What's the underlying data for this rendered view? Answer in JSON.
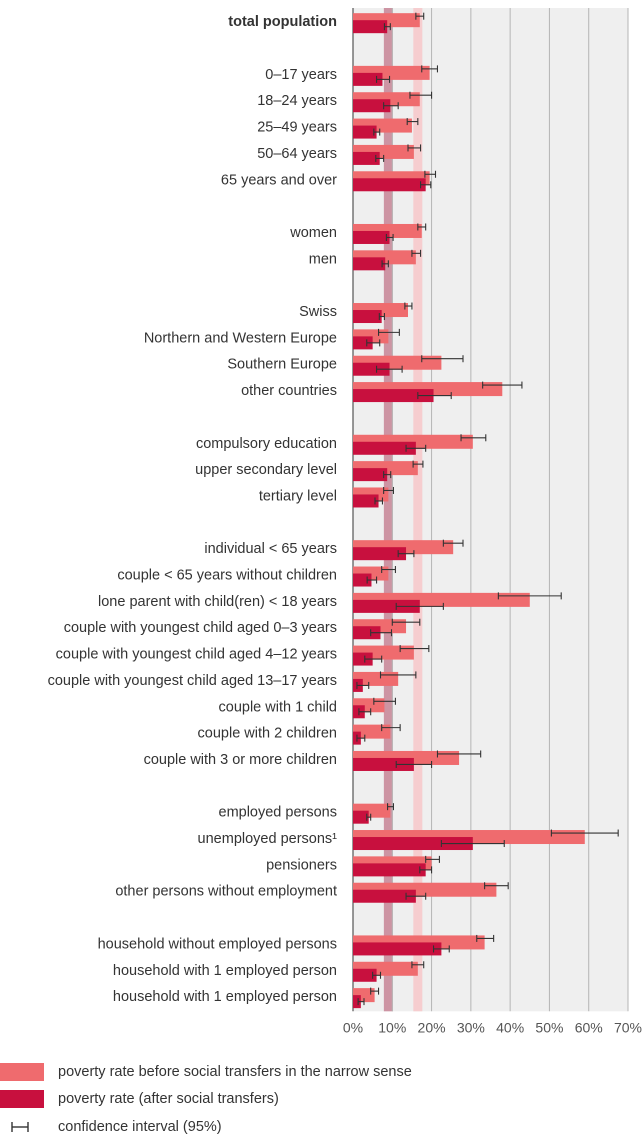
{
  "chart_data": {
    "type": "bar",
    "orientation": "horizontal",
    "xlim": [
      0,
      70
    ],
    "xticks": [
      "0%",
      "10%",
      "20%",
      "30%",
      "40%",
      "50%",
      "60%",
      "70%"
    ],
    "grid": true,
    "reference_bands": [
      {
        "value": 9.0,
        "color": "#c98a9a"
      },
      {
        "value": 16.5,
        "color": "#f6c9cb"
      }
    ],
    "colors": {
      "before": "#ef6b6e",
      "after": "#c8103e",
      "ci": "#333333"
    },
    "categories": [
      {
        "label": "total population",
        "bold": true,
        "before": 17.0,
        "before_ci": [
          16.0,
          18.0
        ],
        "after": 8.7,
        "after_ci": [
          8.0,
          9.5
        ]
      },
      {
        "label": "",
        "gap": true
      },
      {
        "label": "0–17 years",
        "before": 19.5,
        "before_ci": [
          17.5,
          21.5
        ],
        "after": 7.5,
        "after_ci": [
          6.0,
          9.3
        ]
      },
      {
        "label": "18–24 years",
        "before": 17.0,
        "before_ci": [
          14.5,
          20.0
        ],
        "after": 9.5,
        "after_ci": [
          7.8,
          11.5
        ]
      },
      {
        "label": "25–49 years",
        "before": 15.0,
        "before_ci": [
          13.8,
          16.5
        ],
        "after": 6.0,
        "after_ci": [
          5.3,
          6.8
        ]
      },
      {
        "label": "50–64 years",
        "before": 15.5,
        "before_ci": [
          14.0,
          17.2
        ],
        "after": 6.8,
        "after_ci": [
          5.8,
          7.8
        ]
      },
      {
        "label": "65 years and over",
        "before": 19.5,
        "before_ci": [
          18.3,
          21.0
        ],
        "after": 18.5,
        "after_ci": [
          17.2,
          19.8
        ]
      },
      {
        "label": "",
        "gap": true
      },
      {
        "label": "women",
        "before": 17.5,
        "before_ci": [
          16.5,
          18.5
        ],
        "after": 9.3,
        "after_ci": [
          8.5,
          10.2
        ]
      },
      {
        "label": "men",
        "before": 16.0,
        "before_ci": [
          15.0,
          17.2
        ],
        "after": 8.2,
        "after_ci": [
          7.4,
          9.0
        ]
      },
      {
        "label": "",
        "gap": true
      },
      {
        "label": "Swiss",
        "before": 14.0,
        "before_ci": [
          13.2,
          15.0
        ],
        "after": 7.3,
        "after_ci": [
          6.7,
          8.0
        ]
      },
      {
        "label": "Northern and Western Europe",
        "before": 9.0,
        "before_ci": [
          6.5,
          11.8
        ],
        "after": 5.0,
        "after_ci": [
          3.5,
          6.8
        ]
      },
      {
        "label": "Southern Europe",
        "before": 22.5,
        "before_ci": [
          17.5,
          28.0
        ],
        "after": 9.3,
        "after_ci": [
          6.0,
          12.5
        ]
      },
      {
        "label": "other countries",
        "before": 38.0,
        "before_ci": [
          33.0,
          43.0
        ],
        "after": 20.5,
        "after_ci": [
          16.5,
          25.0
        ]
      },
      {
        "label": "",
        "gap": true
      },
      {
        "label": "compulsory education",
        "before": 30.5,
        "before_ci": [
          27.5,
          33.8
        ],
        "after": 16.0,
        "after_ci": [
          13.5,
          18.5
        ]
      },
      {
        "label": "upper secondary level",
        "before": 16.5,
        "before_ci": [
          15.3,
          17.8
        ],
        "after": 8.7,
        "after_ci": [
          7.8,
          9.6
        ]
      },
      {
        "label": "tertiary level",
        "before": 9.0,
        "before_ci": [
          7.8,
          10.3
        ],
        "after": 6.5,
        "after_ci": [
          5.6,
          7.5
        ]
      },
      {
        "label": "",
        "gap": true
      },
      {
        "label": "individual < 65 years",
        "before": 25.5,
        "before_ci": [
          23.0,
          28.0
        ],
        "after": 13.5,
        "after_ci": [
          11.5,
          15.5
        ]
      },
      {
        "label": "couple < 65 years without children",
        "before": 9.0,
        "before_ci": [
          7.3,
          10.8
        ],
        "after": 4.7,
        "after_ci": [
          3.6,
          6.0
        ]
      },
      {
        "label": "lone parent with child(ren) < 18 years",
        "before": 45.0,
        "before_ci": [
          37.0,
          53.0
        ],
        "after": 17.0,
        "after_ci": [
          11.0,
          23.0
        ]
      },
      {
        "label": "couple with youngest child aged 0–3 years",
        "before": 13.5,
        "before_ci": [
          10.0,
          17.0
        ],
        "after": 7.0,
        "after_ci": [
          4.5,
          9.8
        ]
      },
      {
        "label": "couple with youngest child aged 4–12 years",
        "before": 15.5,
        "before_ci": [
          12.0,
          19.3
        ],
        "after": 5.0,
        "after_ci": [
          3.0,
          7.3
        ]
      },
      {
        "label": "couple with youngest child aged 13–17 years",
        "before": 11.5,
        "before_ci": [
          7.0,
          16.0
        ],
        "after": 2.5,
        "after_ci": [
          1.0,
          4.0
        ]
      },
      {
        "label": "couple with 1 child",
        "before": 8.0,
        "before_ci": [
          5.3,
          10.8
        ],
        "after": 3.0,
        "after_ci": [
          1.5,
          4.5
        ]
      },
      {
        "label": "couple with 2 children",
        "before": 9.5,
        "before_ci": [
          7.3,
          12.0
        ],
        "after": 2.0,
        "after_ci": [
          1.0,
          3.0
        ]
      },
      {
        "label": "couple with 3 or more children",
        "before": 27.0,
        "before_ci": [
          21.5,
          32.5
        ],
        "after": 15.5,
        "after_ci": [
          11.0,
          20.0
        ]
      },
      {
        "label": "",
        "gap": true
      },
      {
        "label": "employed persons",
        "before": 9.5,
        "before_ci": [
          8.8,
          10.3
        ],
        "after": 4.0,
        "after_ci": [
          3.5,
          4.5
        ]
      },
      {
        "label": "unemployed persons¹",
        "before": 59.0,
        "before_ci": [
          50.5,
          67.5
        ],
        "after": 30.5,
        "after_ci": [
          22.5,
          38.5
        ]
      },
      {
        "label": "pensioners",
        "before": 20.0,
        "before_ci": [
          18.5,
          22.0
        ],
        "after": 18.5,
        "after_ci": [
          17.0,
          20.0
        ]
      },
      {
        "label": "other persons without employment",
        "before": 36.5,
        "before_ci": [
          33.5,
          39.5
        ],
        "after": 16.0,
        "after_ci": [
          13.5,
          18.5
        ]
      },
      {
        "label": "",
        "gap": true
      },
      {
        "label": "household without employed persons",
        "before": 33.5,
        "before_ci": [
          31.5,
          35.8
        ],
        "after": 22.5,
        "after_ci": [
          20.5,
          24.5
        ]
      },
      {
        "label": "household with 1 employed person",
        "before": 16.5,
        "before_ci": [
          15.0,
          18.0
        ],
        "after": 6.0,
        "after_ci": [
          5.0,
          7.0
        ]
      },
      {
        "label": "household with 1 employed person",
        "before": 5.5,
        "before_ci": [
          4.5,
          6.5
        ],
        "after": 2.0,
        "after_ci": [
          1.3,
          2.8
        ]
      }
    ],
    "legend": [
      {
        "key": "before",
        "label": "poverty rate before social transfers in the narrow sense",
        "color": "#ef6b6e"
      },
      {
        "key": "after",
        "label": "poverty rate (after social transfers)",
        "color": "#c8103e"
      },
      {
        "key": "ci",
        "label": "confidence interval (95%)",
        "color": "#333333"
      }
    ]
  }
}
